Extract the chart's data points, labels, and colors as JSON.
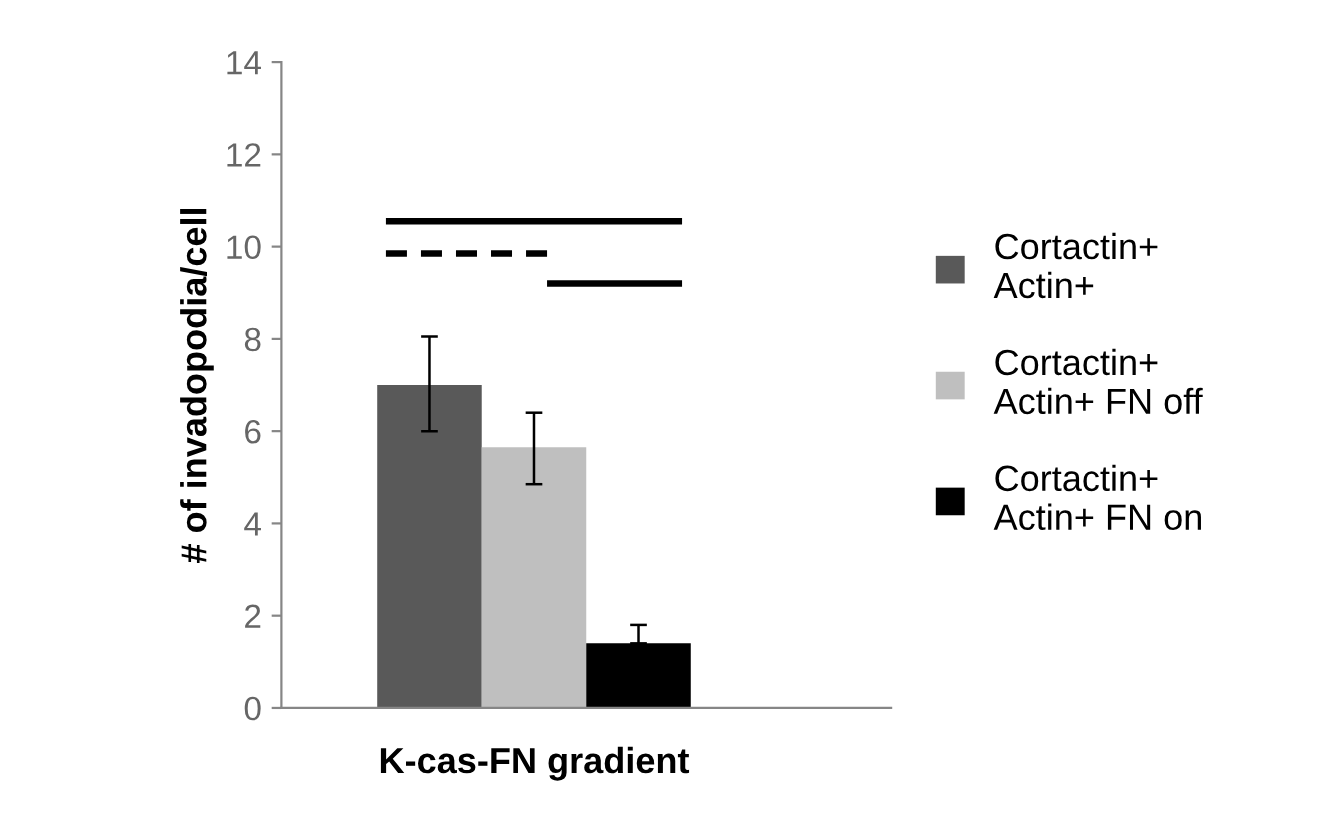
{
  "chart_data": {
    "type": "bar",
    "categories": [
      "K-cas-FN gradient"
    ],
    "ylabel": "# of invadopodia/cell",
    "series": [
      {
        "name": "Cortactin+\nActin+",
        "color": "#595959",
        "values": [
          7.0
        ],
        "errors": [
          [
            6.0,
            8.05
          ]
        ]
      },
      {
        "name": "Cortactin+\nActin+ FN off",
        "color": "#bfbfbf",
        "values": [
          5.65
        ],
        "errors": [
          [
            4.85,
            6.4
          ]
        ]
      },
      {
        "name": "Cortactin+\nActin+ FN on",
        "color": "#000000",
        "values": [
          1.4
        ],
        "errors": [
          [
            1.4,
            1.8
          ]
        ]
      }
    ],
    "ylim": [
      0,
      14
    ],
    "yticks": [
      0,
      2,
      4,
      6,
      8,
      10,
      12,
      14
    ],
    "grid": false,
    "legend": "right"
  }
}
